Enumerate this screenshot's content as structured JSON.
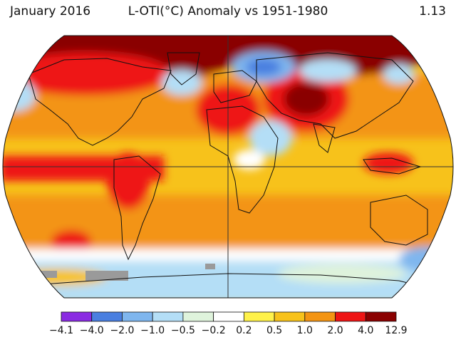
{
  "header": {
    "date": "January 2016",
    "title": "L-OTI(°C) Anomaly vs 1951-1980",
    "global_mean": "1.13"
  },
  "legend": {
    "bins": [
      {
        "label": "−4.1",
        "color": "#8a2be2"
      },
      {
        "label": "−4.0",
        "color": "#4a7fe0"
      },
      {
        "label": "−2.0",
        "color": "#7fb6ee"
      },
      {
        "label": "−1.0",
        "color": "#b4def6"
      },
      {
        "label": "−0.5",
        "color": "#dff3dc"
      },
      {
        "label": "−0.2",
        "color": "#ffffff"
      },
      {
        "label": "0.2",
        "color": "#fff24a"
      },
      {
        "label": "0.5",
        "color": "#f7c21b"
      },
      {
        "label": "1.0",
        "color": "#f39413"
      },
      {
        "label": "2.0",
        "color": "#ee1414"
      },
      {
        "label": "4.0",
        "color": "#8a0000"
      }
    ],
    "max_label": "12.9"
  },
  "map": {
    "missing_color": "#9a9a9a",
    "land_outline": "#111111"
  }
}
